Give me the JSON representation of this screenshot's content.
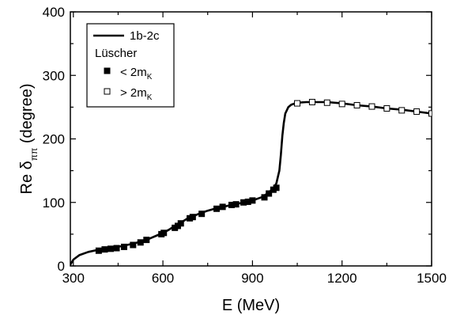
{
  "chart_data": {
    "type": "line",
    "xlabel": "E (MeV)",
    "ylabel": {
      "main": "Re δ",
      "subscript": "ππ",
      "unit": "(degree)"
    },
    "xlim": [
      290,
      1500
    ],
    "ylim": [
      0,
      400
    ],
    "xticks": [
      300,
      600,
      900,
      1200,
      1500
    ],
    "yticks": [
      0,
      100,
      200,
      300,
      400
    ],
    "legend": {
      "placement": "top-left",
      "heading": "Lüscher",
      "entries": [
        {
          "label": "1b-2c",
          "marker": "line"
        },
        {
          "label": "< 2m",
          "subscript": "K",
          "marker": "filled-square"
        },
        {
          "label": "> 2m",
          "subscript": "K",
          "marker": "open-square"
        }
      ]
    },
    "series": [
      {
        "name": "1b-2c",
        "kind": "line",
        "color": "#000000",
        "x": [
          290,
          300,
          320,
          350,
          380,
          420,
          460,
          500,
          540,
          560,
          580,
          600,
          620,
          640,
          660,
          680,
          700,
          720,
          750,
          780,
          820,
          860,
          900,
          930,
          950,
          970,
          980,
          990,
          995,
          1000,
          1005,
          1010,
          1020,
          1030,
          1050,
          1080,
          1100,
          1150,
          1200,
          1250,
          1300,
          1350,
          1400,
          1450,
          1500
        ],
        "y": [
          2,
          10,
          17,
          22,
          25,
          28,
          31,
          35,
          40,
          44,
          48,
          52,
          57,
          63,
          68,
          74,
          78,
          82,
          87,
          91,
          95,
          99,
          103,
          108,
          114,
          122,
          130,
          150,
          175,
          205,
          225,
          240,
          250,
          254,
          257,
          258,
          258,
          258,
          256,
          253,
          251,
          248,
          246,
          243,
          240
        ]
      },
      {
        "name": "< 2m",
        "kind": "scatter",
        "marker": "filled-square",
        "x": [
          385,
          405,
          425,
          445,
          470,
          500,
          525,
          545,
          595,
          603,
          640,
          650,
          660,
          690,
          700,
          730,
          780,
          800,
          830,
          845,
          870,
          885,
          900,
          940,
          955,
          970,
          980
        ],
        "y": [
          24,
          26,
          27,
          28,
          30,
          33,
          37,
          41,
          50,
          52,
          60,
          63,
          67,
          75,
          77,
          82,
          90,
          93,
          96,
          97,
          100,
          101,
          103,
          108,
          114,
          120,
          123
        ]
      },
      {
        "name": "> 2m",
        "kind": "scatter",
        "marker": "open-square",
        "x": [
          1050,
          1100,
          1150,
          1200,
          1250,
          1300,
          1350,
          1400,
          1450,
          1500
        ],
        "y": [
          256,
          258,
          257,
          255,
          253,
          251,
          248,
          245,
          243,
          240
        ]
      }
    ]
  }
}
